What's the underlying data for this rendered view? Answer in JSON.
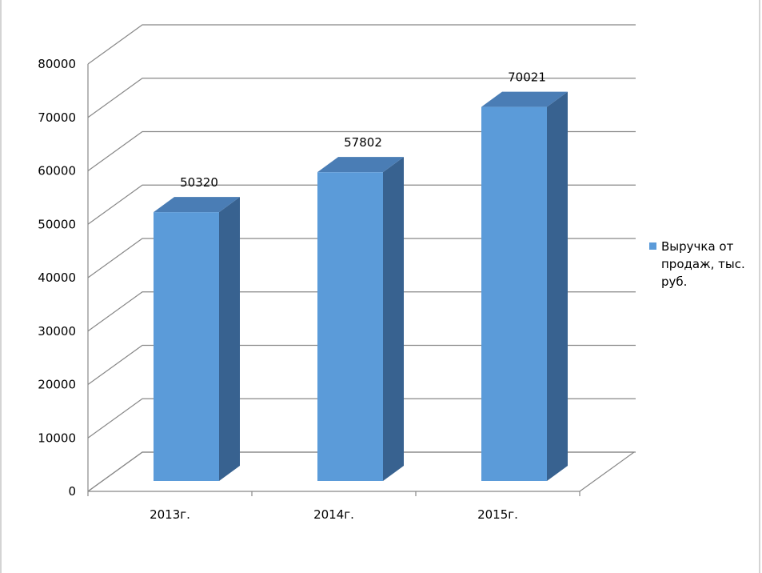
{
  "chart_data": {
    "type": "bar3d",
    "categories": [
      "2013г.",
      "2014г.",
      "2015г."
    ],
    "series": [
      {
        "name": "Выручка от продаж, тыс. руб.",
        "color": "#5b9bd9",
        "values": [
          50320,
          57802,
          70021
        ]
      }
    ],
    "ylim": [
      0,
      80000
    ],
    "yticks": [
      0,
      10000,
      20000,
      30000,
      40000,
      50000,
      60000,
      70000,
      80000
    ],
    "grid": true,
    "legend": "right"
  }
}
